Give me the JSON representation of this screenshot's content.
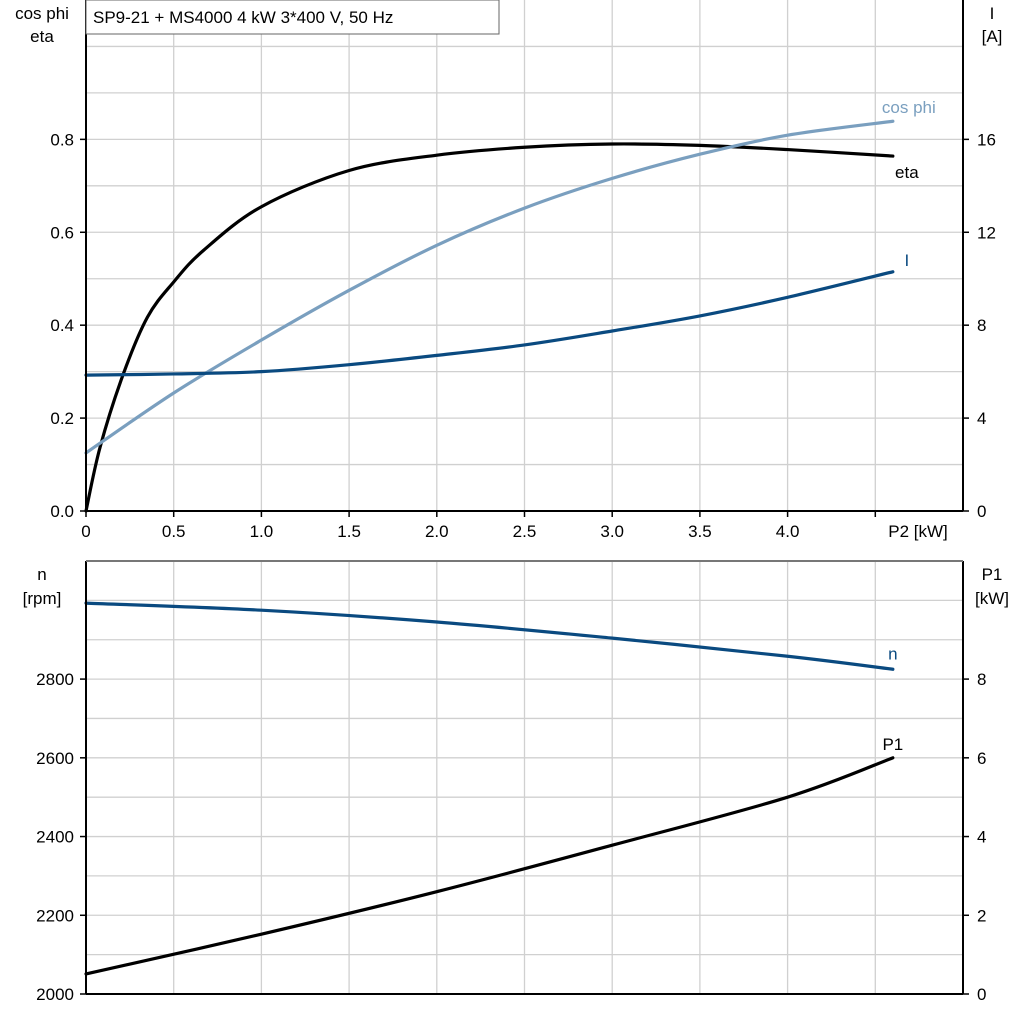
{
  "title": "SP9-21 + MS4000   4 kW   3*400 V, 50 Hz",
  "colors": {
    "eta": "#000000",
    "cos_phi": "#7a9fbf",
    "I": "#0a4a80",
    "n": "#0a4a80",
    "P1": "#000000",
    "grid": "#d0d0d0"
  },
  "chart_data": [
    {
      "type": "line",
      "xlabel": "P2 [kW]",
      "xlim": [
        0,
        5.0
      ],
      "xticks": [
        "0",
        "0.5",
        "1.0",
        "1.5",
        "2.0",
        "2.5",
        "3.0",
        "3.5",
        "4.0"
      ],
      "xtick_values": [
        0,
        0.5,
        1.0,
        1.5,
        2.0,
        2.5,
        3.0,
        3.5,
        4.0
      ],
      "ylabel_left": [
        "cos phi",
        "eta"
      ],
      "ylim_left": [
        0,
        1.1
      ],
      "yticks_left": [
        "0.0",
        "0.2",
        "0.4",
        "0.6",
        "0.8"
      ],
      "ytick_values_left": [
        0,
        0.2,
        0.4,
        0.6,
        0.8
      ],
      "ylabel_right": [
        "I",
        "[A]"
      ],
      "ylim_right": [
        0,
        22
      ],
      "yticks_right": [
        "0",
        "4",
        "8",
        "12",
        "16"
      ],
      "ytick_values_right": [
        0,
        4,
        8,
        12,
        16
      ],
      "grid": true,
      "series": [
        {
          "name": "eta",
          "axis": "left",
          "color": "#000000",
          "x": [
            0,
            0.08,
            0.21,
            0.35,
            0.5,
            0.67,
            1.0,
            1.5,
            2.0,
            2.5,
            3.0,
            3.5,
            4.0,
            4.6
          ],
          "y": [
            0,
            0.137,
            0.292,
            0.417,
            0.493,
            0.561,
            0.655,
            0.733,
            0.766,
            0.783,
            0.79,
            0.787,
            0.778,
            0.764
          ]
        },
        {
          "name": "cos phi",
          "axis": "left",
          "color": "#7a9fbf",
          "x": [
            0,
            0.5,
            1.0,
            1.5,
            2.0,
            2.5,
            3.0,
            3.5,
            4.0,
            4.6
          ],
          "y": [
            0.125,
            0.254,
            0.368,
            0.475,
            0.572,
            0.652,
            0.716,
            0.768,
            0.809,
            0.839
          ]
        },
        {
          "name": "I",
          "axis": "right",
          "color": "#0a4a80",
          "x": [
            0,
            0.5,
            1.0,
            1.5,
            2.0,
            2.5,
            3.0,
            3.5,
            4.0,
            4.6
          ],
          "y": [
            5.85,
            5.9,
            6.0,
            6.3,
            6.7,
            7.15,
            7.75,
            8.4,
            9.2,
            10.3
          ]
        }
      ]
    },
    {
      "type": "line",
      "xlim": [
        0,
        5.0
      ],
      "ylabel_left": [
        "n",
        "[rpm]"
      ],
      "ylim_left": [
        2000,
        3100
      ],
      "yticks_left": [
        "2000",
        "2200",
        "2400",
        "2600",
        "2800"
      ],
      "ytick_values_left": [
        2000,
        2200,
        2400,
        2600,
        2800
      ],
      "ylabel_right": [
        "P1",
        "[kW]"
      ],
      "ylim_right": [
        0,
        11
      ],
      "yticks_right": [
        "0",
        "2",
        "4",
        "6",
        "8"
      ],
      "ytick_values_right": [
        0,
        2,
        4,
        6,
        8
      ],
      "grid": true,
      "series": [
        {
          "name": "n",
          "axis": "left",
          "color": "#0a4a80",
          "x": [
            0,
            1.0,
            2.0,
            3.0,
            4.0,
            4.6
          ],
          "y": [
            2993,
            2975,
            2945,
            2904,
            2858,
            2825
          ]
        },
        {
          "name": "P1",
          "axis": "right",
          "color": "#000000",
          "x": [
            0,
            1.0,
            2.0,
            3.0,
            4.0,
            4.6
          ],
          "y": [
            0.51,
            1.52,
            2.6,
            3.78,
            5.0,
            6.0
          ]
        }
      ]
    }
  ]
}
